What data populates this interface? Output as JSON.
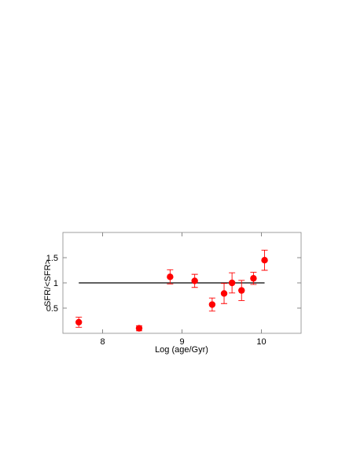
{
  "chart_data": {
    "type": "scatter",
    "xlabel": "Log (age/Gyr)",
    "ylabel": "SFR/<SFR>",
    "x": [
      7.7,
      8.46,
      8.85,
      9.16,
      9.38,
      9.53,
      9.63,
      9.75,
      9.9,
      10.04
    ],
    "series": [
      {
        "color": "#ff0000",
        "values": [
          0.22,
          0.1,
          1.12,
          1.04,
          0.57,
          0.79,
          1.0,
          0.85,
          1.09,
          1.45
        ],
        "errors": [
          0.1,
          0.05,
          0.14,
          0.13,
          0.13,
          0.2,
          0.2,
          0.2,
          0.12,
          0.2
        ]
      }
    ],
    "reference_line": {
      "y": 1,
      "x": [
        7.7,
        10.04
      ],
      "color": "#000000"
    },
    "xlim": [
      7.5,
      10.5
    ],
    "ylim": [
      0,
      2
    ],
    "xticks": [
      8,
      9,
      10
    ],
    "yticks": [
      0.5,
      1,
      1.5
    ]
  }
}
